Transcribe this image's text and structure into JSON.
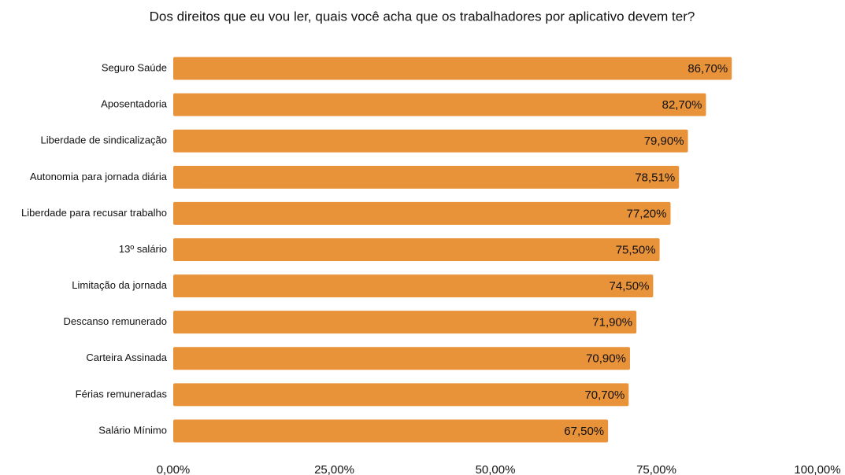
{
  "chart_data": {
    "type": "barh",
    "title": "Dos direitos que eu vou ler, quais você acha que os trabalhadores por aplicativo devem ter?",
    "categories": [
      "Seguro Saúde",
      "Aposentadoria",
      "Liberdade de sindicalização",
      "Autonomia para jornada diária",
      "Liberdade para recusar trabalho",
      "13º salário",
      "Limitação da jornada",
      "Descanso remunerado",
      "Carteira Assinada",
      "Férias remuneradas",
      "Salário Mínimo"
    ],
    "values": [
      86.7,
      82.7,
      79.9,
      78.51,
      77.2,
      75.5,
      74.5,
      71.9,
      70.9,
      70.7,
      67.5
    ],
    "value_labels": [
      "86,70%",
      "82,70%",
      "79,90%",
      "78,51%",
      "77,20%",
      "75,50%",
      "74,50%",
      "71,90%",
      "70,90%",
      "70,70%",
      "67,50%"
    ],
    "color": "#e8923a",
    "xlim": [
      0,
      100
    ],
    "xticks": [
      {
        "value": 0,
        "label": "0,00%"
      },
      {
        "value": 25,
        "label": "25,00%"
      },
      {
        "value": 50,
        "label": "50,00%"
      },
      {
        "value": 75,
        "label": "75,00%"
      },
      {
        "value": 100,
        "label": "100,00%"
      }
    ],
    "grid": false
  }
}
